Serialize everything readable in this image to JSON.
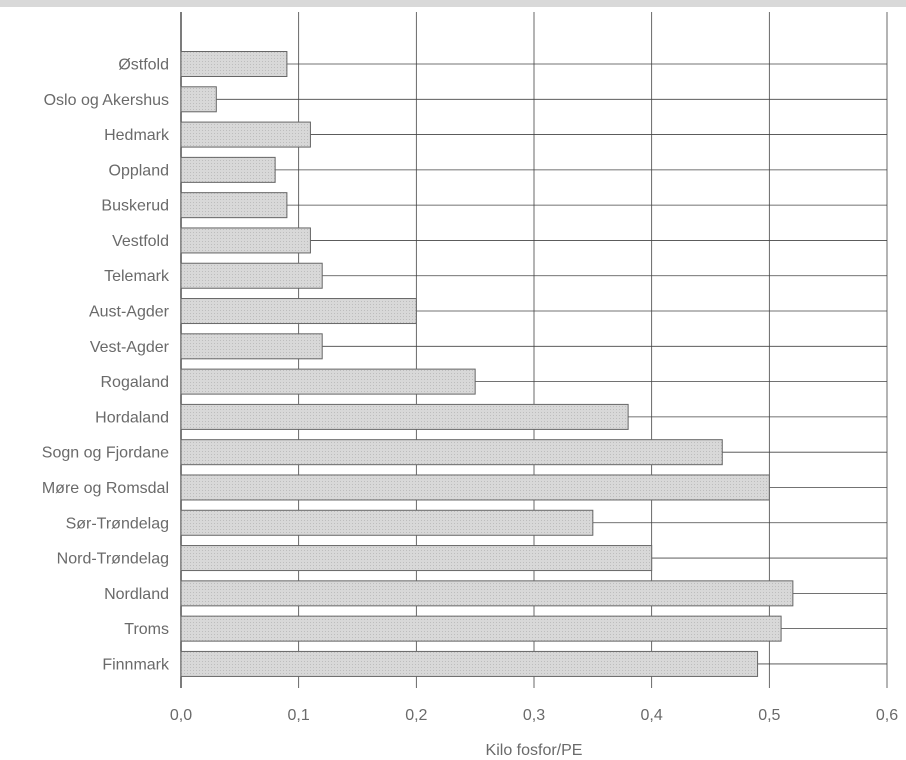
{
  "chart_data": {
    "type": "bar",
    "orientation": "horizontal",
    "categories": [
      "Østfold",
      "Oslo og Akershus",
      "Hedmark",
      "Oppland",
      "Buskerud",
      "Vestfold",
      "Telemark",
      "Aust-Agder",
      "Vest-Agder",
      "Rogaland",
      "Hordaland",
      "Sogn og Fjordane",
      "Møre og Romsdal",
      "Sør-Trøndelag",
      "Nord-Trøndelag",
      "Nordland",
      "Troms",
      "Finnmark"
    ],
    "values": [
      0.09,
      0.03,
      0.11,
      0.08,
      0.09,
      0.11,
      0.12,
      0.2,
      0.12,
      0.25,
      0.38,
      0.46,
      0.5,
      0.35,
      0.4,
      0.52,
      0.51,
      0.49
    ],
    "xlabel": "Kilo fosfor/PE",
    "xlim": [
      0,
      0.6
    ],
    "xticks": [
      0,
      0.1,
      0.2,
      0.3,
      0.4,
      0.5,
      0.6
    ],
    "xtick_labels": [
      "0,0",
      "0,1",
      "0,2",
      "0,3",
      "0,4",
      "0,5",
      "0,6"
    ],
    "grid": true,
    "colors": {
      "bar_fill": "#d6d6d6",
      "bar_stroke": "#666666",
      "grid": "#444444",
      "text": "#6a6a6a"
    }
  }
}
